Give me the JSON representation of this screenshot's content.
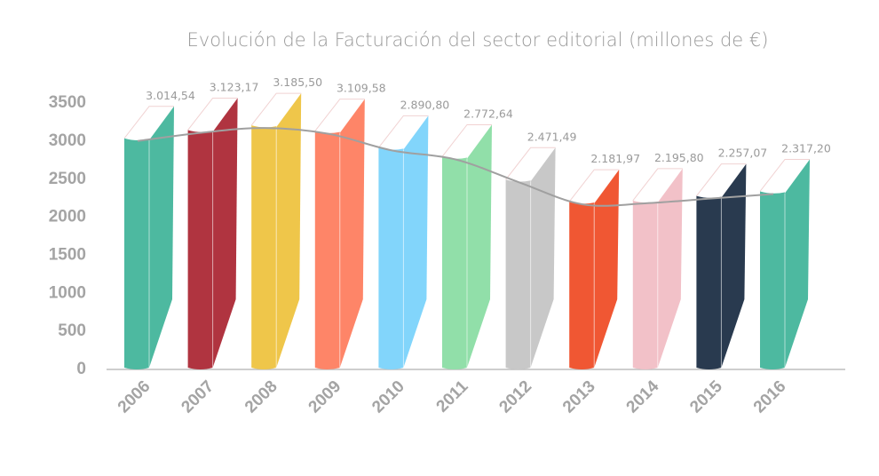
{
  "chart_data": {
    "type": "bar",
    "title": "Evolución de la Facturación del sector editorial (millones de €)",
    "xlabel": "",
    "ylabel": "",
    "ylim": [
      0,
      3500
    ],
    "yticks": [
      "0",
      "500",
      "1000",
      "1500",
      "2000",
      "2500",
      "3000",
      "3500"
    ],
    "grid": false,
    "legend": "none",
    "trend_line": true,
    "trend_line_color": "#a0a0a0",
    "categories": [
      "2006",
      "2007",
      "2008",
      "2009",
      "2010",
      "2011",
      "2012",
      "2013",
      "2014",
      "2015",
      "2016"
    ],
    "values": [
      3014.54,
      3123.17,
      3185.5,
      3109.58,
      2890.8,
      2772.64,
      2471.49,
      2181.97,
      2195.8,
      2257.07,
      2317.2
    ],
    "data_labels": [
      "3.014,54",
      "3.123,17",
      "3.185,50",
      "3.109,58",
      "2.890,80",
      "2.772,64",
      "2.471,49",
      "2.181,97",
      "2.195,80",
      "2.257,07",
      "2.317,20"
    ],
    "colors": [
      "#4db9a0",
      "#b03440",
      "#efc64a",
      "#fe8568",
      "#82d5fb",
      "#91dfa9",
      "#c8c8c8",
      "#f05733",
      "#f2c1c8",
      "#293a4f",
      "#4db9a0"
    ]
  }
}
